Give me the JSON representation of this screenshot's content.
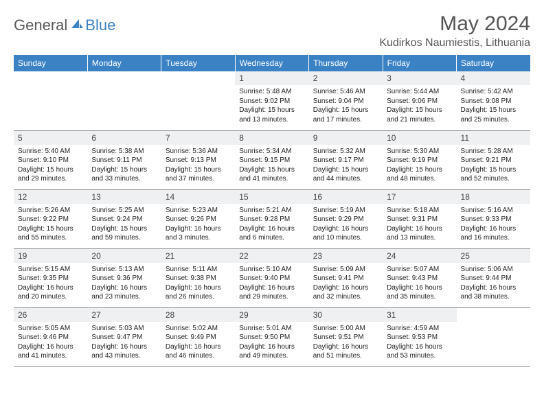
{
  "logo": {
    "text1": "General",
    "text2": "Blue"
  },
  "title": "May 2024",
  "location": "Kudirkos Naumiestis, Lithuania",
  "colors": {
    "header_bg": "#3b82c4",
    "header_text": "#ffffff",
    "daynum_bg": "#eef0f2",
    "border": "#888888",
    "body_text": "#222222",
    "title_text": "#555555"
  },
  "typography": {
    "title_fontsize": 30,
    "location_fontsize": 16,
    "dayheader_fontsize": 12,
    "daynum_fontsize": 12,
    "body_fontsize": 10
  },
  "day_labels": [
    "Sunday",
    "Monday",
    "Tuesday",
    "Wednesday",
    "Thursday",
    "Friday",
    "Saturday"
  ],
  "weeks": [
    [
      null,
      null,
      null,
      {
        "n": "1",
        "sr": "5:48 AM",
        "ss": "9:02 PM",
        "dl": "15 hours and 13 minutes."
      },
      {
        "n": "2",
        "sr": "5:46 AM",
        "ss": "9:04 PM",
        "dl": "15 hours and 17 minutes."
      },
      {
        "n": "3",
        "sr": "5:44 AM",
        "ss": "9:06 PM",
        "dl": "15 hours and 21 minutes."
      },
      {
        "n": "4",
        "sr": "5:42 AM",
        "ss": "9:08 PM",
        "dl": "15 hours and 25 minutes."
      }
    ],
    [
      {
        "n": "5",
        "sr": "5:40 AM",
        "ss": "9:10 PM",
        "dl": "15 hours and 29 minutes."
      },
      {
        "n": "6",
        "sr": "5:38 AM",
        "ss": "9:11 PM",
        "dl": "15 hours and 33 minutes."
      },
      {
        "n": "7",
        "sr": "5:36 AM",
        "ss": "9:13 PM",
        "dl": "15 hours and 37 minutes."
      },
      {
        "n": "8",
        "sr": "5:34 AM",
        "ss": "9:15 PM",
        "dl": "15 hours and 41 minutes."
      },
      {
        "n": "9",
        "sr": "5:32 AM",
        "ss": "9:17 PM",
        "dl": "15 hours and 44 minutes."
      },
      {
        "n": "10",
        "sr": "5:30 AM",
        "ss": "9:19 PM",
        "dl": "15 hours and 48 minutes."
      },
      {
        "n": "11",
        "sr": "5:28 AM",
        "ss": "9:21 PM",
        "dl": "15 hours and 52 minutes."
      }
    ],
    [
      {
        "n": "12",
        "sr": "5:26 AM",
        "ss": "9:22 PM",
        "dl": "15 hours and 55 minutes."
      },
      {
        "n": "13",
        "sr": "5:25 AM",
        "ss": "9:24 PM",
        "dl": "15 hours and 59 minutes."
      },
      {
        "n": "14",
        "sr": "5:23 AM",
        "ss": "9:26 PM",
        "dl": "16 hours and 3 minutes."
      },
      {
        "n": "15",
        "sr": "5:21 AM",
        "ss": "9:28 PM",
        "dl": "16 hours and 6 minutes."
      },
      {
        "n": "16",
        "sr": "5:19 AM",
        "ss": "9:29 PM",
        "dl": "16 hours and 10 minutes."
      },
      {
        "n": "17",
        "sr": "5:18 AM",
        "ss": "9:31 PM",
        "dl": "16 hours and 13 minutes."
      },
      {
        "n": "18",
        "sr": "5:16 AM",
        "ss": "9:33 PM",
        "dl": "16 hours and 16 minutes."
      }
    ],
    [
      {
        "n": "19",
        "sr": "5:15 AM",
        "ss": "9:35 PM",
        "dl": "16 hours and 20 minutes."
      },
      {
        "n": "20",
        "sr": "5:13 AM",
        "ss": "9:36 PM",
        "dl": "16 hours and 23 minutes."
      },
      {
        "n": "21",
        "sr": "5:11 AM",
        "ss": "9:38 PM",
        "dl": "16 hours and 26 minutes."
      },
      {
        "n": "22",
        "sr": "5:10 AM",
        "ss": "9:40 PM",
        "dl": "16 hours and 29 minutes."
      },
      {
        "n": "23",
        "sr": "5:09 AM",
        "ss": "9:41 PM",
        "dl": "16 hours and 32 minutes."
      },
      {
        "n": "24",
        "sr": "5:07 AM",
        "ss": "9:43 PM",
        "dl": "16 hours and 35 minutes."
      },
      {
        "n": "25",
        "sr": "5:06 AM",
        "ss": "9:44 PM",
        "dl": "16 hours and 38 minutes."
      }
    ],
    [
      {
        "n": "26",
        "sr": "5:05 AM",
        "ss": "9:46 PM",
        "dl": "16 hours and 41 minutes."
      },
      {
        "n": "27",
        "sr": "5:03 AM",
        "ss": "9:47 PM",
        "dl": "16 hours and 43 minutes."
      },
      {
        "n": "28",
        "sr": "5:02 AM",
        "ss": "9:49 PM",
        "dl": "16 hours and 46 minutes."
      },
      {
        "n": "29",
        "sr": "5:01 AM",
        "ss": "9:50 PM",
        "dl": "16 hours and 49 minutes."
      },
      {
        "n": "30",
        "sr": "5:00 AM",
        "ss": "9:51 PM",
        "dl": "16 hours and 51 minutes."
      },
      {
        "n": "31",
        "sr": "4:59 AM",
        "ss": "9:53 PM",
        "dl": "16 hours and 53 minutes."
      },
      null
    ]
  ],
  "labels": {
    "sunrise": "Sunrise: ",
    "sunset": "Sunset: ",
    "daylight": "Daylight: "
  }
}
